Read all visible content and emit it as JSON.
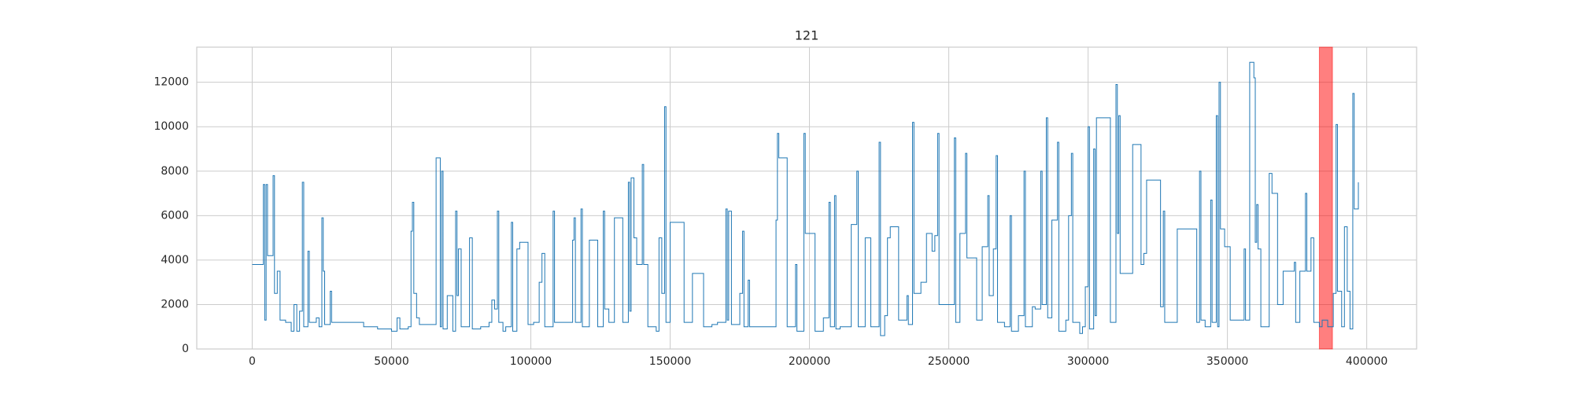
{
  "chart_data": {
    "type": "line",
    "title": "121",
    "drawstyle": "steps-post",
    "grid": true,
    "highlight_span": [
      383000,
      387700
    ],
    "highlight_color": "#ff0000",
    "xlim": [
      -19900,
      417900
    ],
    "xticks": [
      0,
      50000,
      100000,
      150000,
      200000,
      250000,
      300000,
      350000,
      400000
    ],
    "ylim": [
      0,
      13580
    ],
    "yticks": [
      0,
      2000,
      4000,
      6000,
      8000,
      10000,
      12000
    ],
    "x": [
      0,
      3000,
      4000,
      4500,
      5000,
      5500,
      7000,
      7500,
      8000,
      9000,
      10000,
      12000,
      14000,
      15000,
      16000,
      17000,
      18000,
      18500,
      20000,
      20500,
      23000,
      24000,
      25000,
      25500,
      26000,
      28000,
      28500,
      35000,
      40000,
      45000,
      50000,
      52000,
      53000,
      56000,
      57000,
      57500,
      58000,
      59000,
      60000,
      65000,
      66000,
      67500,
      68000,
      68500,
      70000,
      72000,
      73000,
      73500,
      74000,
      75000,
      78000,
      79000,
      82000,
      85000,
      86000,
      87000,
      88000,
      88500,
      90000,
      91000,
      93000,
      93500,
      95000,
      96000,
      99000,
      101000,
      103000,
      104000,
      105000,
      108000,
      108500,
      112000,
      115000,
      115500,
      116000,
      118000,
      118500,
      121000,
      124000,
      126000,
      126500,
      128000,
      130000,
      133000,
      135000,
      135500,
      136000,
      137000,
      138000,
      140000,
      140500,
      142000,
      145000,
      146000,
      147000,
      148000,
      148500,
      150000,
      155000,
      158000,
      162000,
      165000,
      167000,
      170000,
      170500,
      171000,
      172000,
      175000,
      176000,
      176500,
      178000,
      178500,
      181000,
      186000,
      188000,
      188500,
      189000,
      192000,
      195000,
      195500,
      198000,
      198500,
      202000,
      205000,
      207000,
      207500,
      209000,
      209500,
      211000,
      215000,
      217000,
      217500,
      220000,
      222000,
      225000,
      225500,
      227000,
      228000,
      229000,
      232000,
      235000,
      235500,
      237000,
      237500,
      240000,
      242000,
      244000,
      245000,
      246000,
      246500,
      249000,
      252000,
      252500,
      254000,
      256000,
      256500,
      260000,
      262000,
      264000,
      264500,
      266000,
      267000,
      267500,
      270000,
      272000,
      272500,
      275000,
      277000,
      277500,
      280000,
      281000,
      283000,
      283500,
      285000,
      285500,
      287000,
      289000,
      289500,
      292000,
      293000,
      294000,
      294500,
      297000,
      298000,
      299000,
      300000,
      300500,
      302000,
      302500,
      303000,
      308000,
      310000,
      310500,
      311000,
      311500,
      316000,
      319000,
      320000,
      321000,
      326000,
      327000,
      327500,
      332000,
      339000,
      340000,
      340500,
      342000,
      344000,
      344500,
      346000,
      346500,
      347000,
      347500,
      349000,
      351000,
      356000,
      356500,
      358000,
      359500,
      360000,
      360500,
      361000,
      362000,
      365000,
      366000,
      368000,
      370000,
      374000,
      374500,
      376000,
      378000,
      378500,
      380000,
      381000,
      383000,
      384000,
      386000,
      388000,
      389000,
      389500,
      391000,
      392000,
      393000,
      394000,
      395000,
      395500,
      397000
    ],
    "series": [
      {
        "color": "#1f77b4",
        "values": [
          3800,
          3800,
          7400,
          1300,
          7400,
          4200,
          4200,
          7800,
          2500,
          3500,
          1300,
          1200,
          800,
          2000,
          800,
          1700,
          7500,
          1000,
          4400,
          1200,
          1400,
          1000,
          5900,
          3500,
          1100,
          2600,
          1200,
          1200,
          1000,
          900,
          800,
          1400,
          900,
          1000,
          5300,
          6600,
          2500,
          1400,
          1100,
          1100,
          8600,
          1000,
          8000,
          900,
          2400,
          800,
          6200,
          2400,
          4500,
          1000,
          5000,
          900,
          1000,
          1200,
          2200,
          1800,
          6200,
          1200,
          800,
          1000,
          5700,
          800,
          4500,
          4800,
          1100,
          1200,
          3000,
          4300,
          1000,
          6200,
          1200,
          1200,
          4900,
          5900,
          1200,
          6300,
          1000,
          4900,
          1000,
          6200,
          1800,
          1200,
          5900,
          1200,
          7500,
          1700,
          7700,
          5000,
          3800,
          8300,
          3800,
          1000,
          800,
          5000,
          2500,
          10900,
          1200,
          5700,
          1200,
          3400,
          1000,
          1100,
          1200,
          6300,
          1300,
          6200,
          1100,
          2500,
          5300,
          1000,
          3100,
          1000,
          1000,
          1000,
          5800,
          9700,
          8600,
          1000,
          3800,
          800,
          9700,
          5200,
          800,
          1400,
          6600,
          1000,
          6900,
          900,
          1000,
          5600,
          8000,
          1000,
          5000,
          1000,
          9300,
          600,
          1500,
          5000,
          5500,
          1300,
          2400,
          1100,
          10200,
          2500,
          3000,
          5200,
          4400,
          5100,
          9700,
          2000,
          2000,
          9500,
          1200,
          5200,
          8800,
          4100,
          1300,
          4600,
          6900,
          2400,
          4500,
          8700,
          1200,
          1000,
          6000,
          800,
          1500,
          8000,
          1000,
          1900,
          1800,
          8000,
          2000,
          10400,
          1400,
          5800,
          9300,
          800,
          1300,
          6000,
          8800,
          1200,
          700,
          1000,
          2800,
          10000,
          900,
          9000,
          1500,
          10400,
          1200,
          11900,
          5200,
          10500,
          3400,
          9200,
          3800,
          4300,
          7600,
          1900,
          6200,
          1200,
          5400,
          1200,
          8000,
          1300,
          1000,
          6700,
          1200,
          10500,
          1000,
          12000,
          5400,
          4600,
          1300,
          4500,
          1300,
          12900,
          12200,
          4800,
          6500,
          4500,
          1000,
          7900,
          7000,
          2000,
          3500,
          3900,
          1200,
          3500,
          7000,
          3500,
          5000,
          1200,
          1000,
          1300,
          1000,
          2500,
          10100,
          2600,
          1000,
          5500,
          2600,
          900,
          11500,
          6300,
          7500
        ]
      }
    ]
  }
}
